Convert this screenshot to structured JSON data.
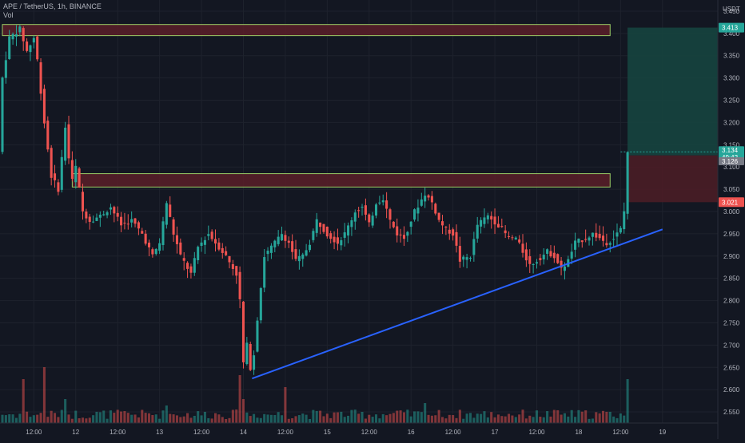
{
  "header": {
    "symbol_line": "APE / TetherUS, 1h, BINANCE",
    "volume_label": "Vol"
  },
  "colors": {
    "background": "#131722",
    "grid": "#1e222d",
    "up": "#26a69a",
    "down": "#ef5350",
    "zone_fill": "#5a1f28",
    "zone_border": "#9ccc65",
    "target_fill": "#16443f",
    "stop_fill": "#4a1d26",
    "trendline": "#2962ff",
    "axis_text": "#b2b5be"
  },
  "chart_data": {
    "type": "candlestick",
    "title": "APE / TetherUS, 1h, BINANCE",
    "currency": "USDT",
    "ylim": [
      2.525,
      3.475
    ],
    "y_ticks": [
      3.45,
      3.4,
      3.35,
      3.3,
      3.25,
      3.2,
      3.15,
      3.1,
      3.05,
      3.0,
      2.95,
      2.9,
      2.85,
      2.8,
      2.75,
      2.7,
      2.65,
      2.6,
      2.55
    ],
    "y_tick_labels": [
      "3.450",
      "3.400",
      "3.350",
      "3.300",
      "3.250",
      "3.200",
      "3.150",
      "3.100",
      "3.050",
      "3.000",
      "2.950",
      "2.900",
      "2.850",
      "2.800",
      "2.750",
      "2.700",
      "2.650",
      "2.600",
      "2.550"
    ],
    "x_ticks": [
      {
        "label": "12:00",
        "hour": 12
      },
      {
        "label": "12",
        "hour": 24
      },
      {
        "label": "12:00",
        "hour": 36
      },
      {
        "label": "13",
        "hour": 48
      },
      {
        "label": "12:00",
        "hour": 60
      },
      {
        "label": "14",
        "hour": 72
      },
      {
        "label": "12:00",
        "hour": 84
      },
      {
        "label": "15",
        "hour": 96
      },
      {
        "label": "12:00",
        "hour": 108
      },
      {
        "label": "16",
        "hour": 120
      },
      {
        "label": "12:00",
        "hour": 132
      },
      {
        "label": "17",
        "hour": 144
      },
      {
        "label": "12:00",
        "hour": 156
      },
      {
        "label": "18",
        "hour": 168
      },
      {
        "label": "12:00",
        "hour": 180
      },
      {
        "label": "19",
        "hour": 192
      }
    ],
    "hours_shown": [
      3,
      198
    ],
    "grid": true,
    "price_path": [
      [
        3,
        3.3
      ],
      [
        5,
        3.39
      ],
      [
        8,
        3.41
      ],
      [
        10,
        3.36
      ],
      [
        12,
        3.39
      ],
      [
        13,
        3.34
      ],
      [
        15,
        3.2
      ],
      [
        17,
        3.08
      ],
      [
        19,
        3.05
      ],
      [
        21,
        3.19
      ],
      [
        22,
        3.12
      ],
      [
        23,
        3.07
      ],
      [
        24,
        3.1
      ],
      [
        26,
        3.0
      ],
      [
        28,
        2.98
      ],
      [
        31,
        2.99
      ],
      [
        34,
        3.01
      ],
      [
        37,
        2.97
      ],
      [
        40,
        2.98
      ],
      [
        43,
        2.95
      ],
      [
        46,
        2.9
      ],
      [
        48,
        2.93
      ],
      [
        50,
        3.02
      ],
      [
        52,
        2.95
      ],
      [
        54,
        2.9
      ],
      [
        57,
        2.86
      ],
      [
        59,
        2.92
      ],
      [
        62,
        2.95
      ],
      [
        64,
        2.93
      ],
      [
        67,
        2.9
      ],
      [
        70,
        2.86
      ],
      [
        71,
        2.8
      ],
      [
        72,
        2.66
      ],
      [
        73,
        2.7
      ],
      [
        74,
        2.65
      ],
      [
        75,
        2.68
      ],
      [
        76,
        2.76
      ],
      [
        78,
        2.9
      ],
      [
        81,
        2.93
      ],
      [
        83,
        2.95
      ],
      [
        85,
        2.93
      ],
      [
        87,
        2.89
      ],
      [
        89,
        2.9
      ],
      [
        91,
        2.93
      ],
      [
        93,
        2.98
      ],
      [
        96,
        2.95
      ],
      [
        99,
        2.93
      ],
      [
        101,
        2.95
      ],
      [
        104,
        3.0
      ],
      [
        106,
        3.01
      ],
      [
        108,
        2.97
      ],
      [
        110,
        3.02
      ],
      [
        112,
        3.03
      ],
      [
        114,
        2.98
      ],
      [
        116,
        2.95
      ],
      [
        118,
        2.94
      ],
      [
        121,
        3.0
      ],
      [
        124,
        3.04
      ],
      [
        126,
        3.02
      ],
      [
        128,
        2.98
      ],
      [
        130,
        2.96
      ],
      [
        132,
        2.95
      ],
      [
        134,
        2.89
      ],
      [
        137,
        2.9
      ],
      [
        139,
        2.97
      ],
      [
        142,
        2.99
      ],
      [
        145,
        2.97
      ],
      [
        148,
        2.94
      ],
      [
        150,
        2.94
      ],
      [
        152,
        2.91
      ],
      [
        154,
        2.88
      ],
      [
        156,
        2.89
      ],
      [
        159,
        2.91
      ],
      [
        161,
        2.9
      ],
      [
        163,
        2.87
      ],
      [
        165,
        2.89
      ],
      [
        167,
        2.93
      ],
      [
        170,
        2.94
      ],
      [
        172,
        2.95
      ],
      [
        174,
        2.94
      ],
      [
        176,
        2.93
      ],
      [
        178,
        2.94
      ],
      [
        180,
        2.96
      ],
      [
        181,
        3.0
      ],
      [
        182,
        3.134
      ]
    ],
    "volume_spikes": [
      [
        9,
        0.55
      ],
      [
        15,
        0.7
      ],
      [
        21,
        0.3
      ],
      [
        50,
        0.22
      ],
      [
        71,
        0.6
      ],
      [
        72,
        0.3
      ],
      [
        84,
        0.45
      ],
      [
        124,
        0.25
      ],
      [
        182,
        0.55
      ]
    ],
    "zones": [
      {
        "from_hour": 3,
        "to_hour": 177,
        "top": 3.42,
        "bottom": 3.395
      },
      {
        "from_hour": 23,
        "to_hour": 177,
        "top": 3.085,
        "bottom": 3.055
      }
    ],
    "position": {
      "from_hour": 182,
      "to_hour": 198,
      "target": 3.413,
      "entry": 3.126,
      "stop": 3.021,
      "target_label": "3.413",
      "current_price": "3.134",
      "countdown": "49:42",
      "entry_label": "3.126",
      "stop_label": "3.021"
    },
    "trendline": {
      "from": [
        74.5,
        2.625
      ],
      "to": [
        192,
        2.96
      ]
    }
  }
}
